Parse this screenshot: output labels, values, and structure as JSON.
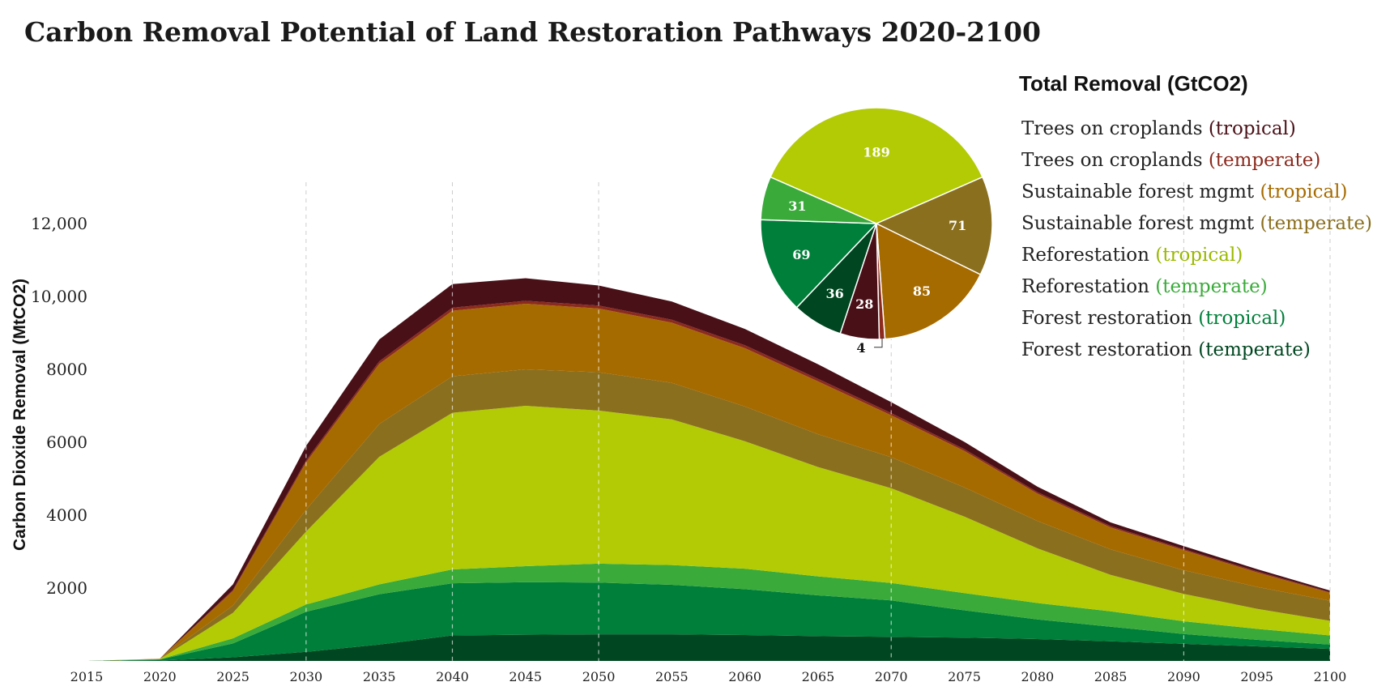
{
  "title": "Carbon Removal Potential of Land Restoration Pathways 2020-2100",
  "chart_data": [
    {
      "type": "area",
      "stacked": true,
      "ylabel": "Carbon Dioxide Removal (MtCO2)",
      "xlabel": "",
      "ylim": [
        0,
        13000
      ],
      "y_ticks": [
        {
          "value": 2000,
          "label": "2000"
        },
        {
          "value": 4000,
          "label": "4000"
        },
        {
          "value": 6000,
          "label": "6000"
        },
        {
          "value": 8000,
          "label": "8000"
        },
        {
          "value": 10000,
          "label": "10,000"
        },
        {
          "value": 12000,
          "label": "12,000"
        }
      ],
      "x": [
        "2015",
        "2020",
        "2025",
        "2030",
        "2035",
        "2040",
        "2045",
        "2050",
        "2055",
        "2060",
        "2065",
        "2070",
        "2075",
        "2080",
        "2085",
        "2090",
        "2095",
        "2100"
      ],
      "gridlines_at": [
        "2030",
        "2040",
        "2050",
        "2070",
        "2090",
        "2100"
      ],
      "series": [
        {
          "name": "Forest restoration (temperate)",
          "color": "#004620",
          "values": [
            0,
            10,
            100,
            250,
            450,
            700,
            720,
            730,
            730,
            710,
            680,
            660,
            640,
            600,
            540,
            470,
            400,
            330
          ]
        },
        {
          "name": "Forest restoration (tropical)",
          "color": "#007f3a",
          "values": [
            0,
            30,
            380,
            1100,
            1380,
            1430,
            1440,
            1420,
            1360,
            1260,
            1120,
            1000,
            750,
            540,
            400,
            270,
            180,
            120
          ]
        },
        {
          "name": "Reforestation (temperate)",
          "color": "#3aaa3a",
          "values": [
            0,
            5,
            140,
            200,
            270,
            380,
            440,
            520,
            540,
            560,
            520,
            480,
            470,
            450,
            420,
            350,
            300,
            250
          ]
        },
        {
          "name": "Reforestation (tropical)",
          "color": "#b2cb05",
          "values": [
            0,
            5,
            700,
            2000,
            3500,
            4300,
            4400,
            4200,
            4000,
            3500,
            3000,
            2600,
            2100,
            1500,
            1000,
            750,
            550,
            400
          ]
        },
        {
          "name": "Sustainable forest mgmt (temperate)",
          "color": "#8a6f1f",
          "values": [
            0,
            5,
            200,
            600,
            900,
            1000,
            1000,
            1050,
            1000,
            950,
            900,
            850,
            800,
            750,
            700,
            650,
            600,
            550
          ]
        },
        {
          "name": "Sustainable forest mgmt (tropical)",
          "color": "#a66b00",
          "values": [
            0,
            5,
            400,
            1300,
            1650,
            1800,
            1800,
            1750,
            1650,
            1600,
            1450,
            1150,
            1000,
            750,
            600,
            550,
            400,
            220
          ]
        },
        {
          "name": "Trees on croplands (temperate)",
          "color": "#8c2a1e",
          "values": [
            0,
            0,
            30,
            50,
            70,
            80,
            80,
            80,
            80,
            80,
            70,
            60,
            50,
            40,
            40,
            30,
            30,
            20
          ]
        },
        {
          "name": "Trees on croplands (tropical)",
          "color": "#4a1018",
          "values": [
            0,
            0,
            150,
            400,
            600,
            650,
            620,
            550,
            500,
            450,
            400,
            300,
            200,
            150,
            100,
            80,
            60,
            40
          ]
        }
      ]
    },
    {
      "type": "pie",
      "title": "Total Removal (GtCO2)",
      "slices": [
        {
          "name": "Reforestation (tropical)",
          "value": 189,
          "label": "189",
          "color": "#b2cb05",
          "label_color": "#ffffff"
        },
        {
          "name": "Sustainable forest mgmt (temperate)",
          "value": 71,
          "label": "71",
          "color": "#8a6f1f",
          "label_color": "#ffffff"
        },
        {
          "name": "Sustainable forest mgmt (tropical)",
          "value": 85,
          "label": "85",
          "color": "#a66b00",
          "label_color": "#ffffff"
        },
        {
          "name": "Trees on croplands (temperate)",
          "value": 4,
          "label": "4",
          "color": "#8c2a1e",
          "label_color": "#111111"
        },
        {
          "name": "Trees on croplands (tropical)",
          "value": 28,
          "label": "28",
          "color": "#4a1018",
          "label_color": "#ffffff"
        },
        {
          "name": "Forest restoration (temperate)",
          "value": 36,
          "label": "36",
          "color": "#004620",
          "label_color": "#ffffff"
        },
        {
          "name": "Forest restoration (tropical)",
          "value": 69,
          "label": "69",
          "color": "#007f3a",
          "label_color": "#ffffff"
        },
        {
          "name": "Reforestation (temperate)",
          "value": 31,
          "label": "31",
          "color": "#3aaa3a",
          "label_color": "#ffffff"
        }
      ]
    }
  ],
  "legend": {
    "title": "Total Removal (GtCO2)",
    "items": [
      {
        "main": "Trees on croplands",
        "qualifier": "(tropical)",
        "color": "#4a1018"
      },
      {
        "main": "Trees on croplands",
        "qualifier": "(temperate)",
        "color": "#8c2a1e"
      },
      {
        "main": "Sustainable forest mgmt",
        "qualifier": "(tropical)",
        "color": "#a66b00"
      },
      {
        "main": "Sustainable forest mgmt",
        "qualifier": "(temperate)",
        "color": "#8a6f1f"
      },
      {
        "main": "Reforestation",
        "qualifier": "(tropical)",
        "color": "#9ab800"
      },
      {
        "main": "Reforestation",
        "qualifier": "(temperate)",
        "color": "#3aaa3a"
      },
      {
        "main": "Forest restoration",
        "qualifier": "(tropical)",
        "color": "#007f3a"
      },
      {
        "main": "Forest restoration",
        "qualifier": "(temperate)",
        "color": "#004620"
      }
    ]
  }
}
